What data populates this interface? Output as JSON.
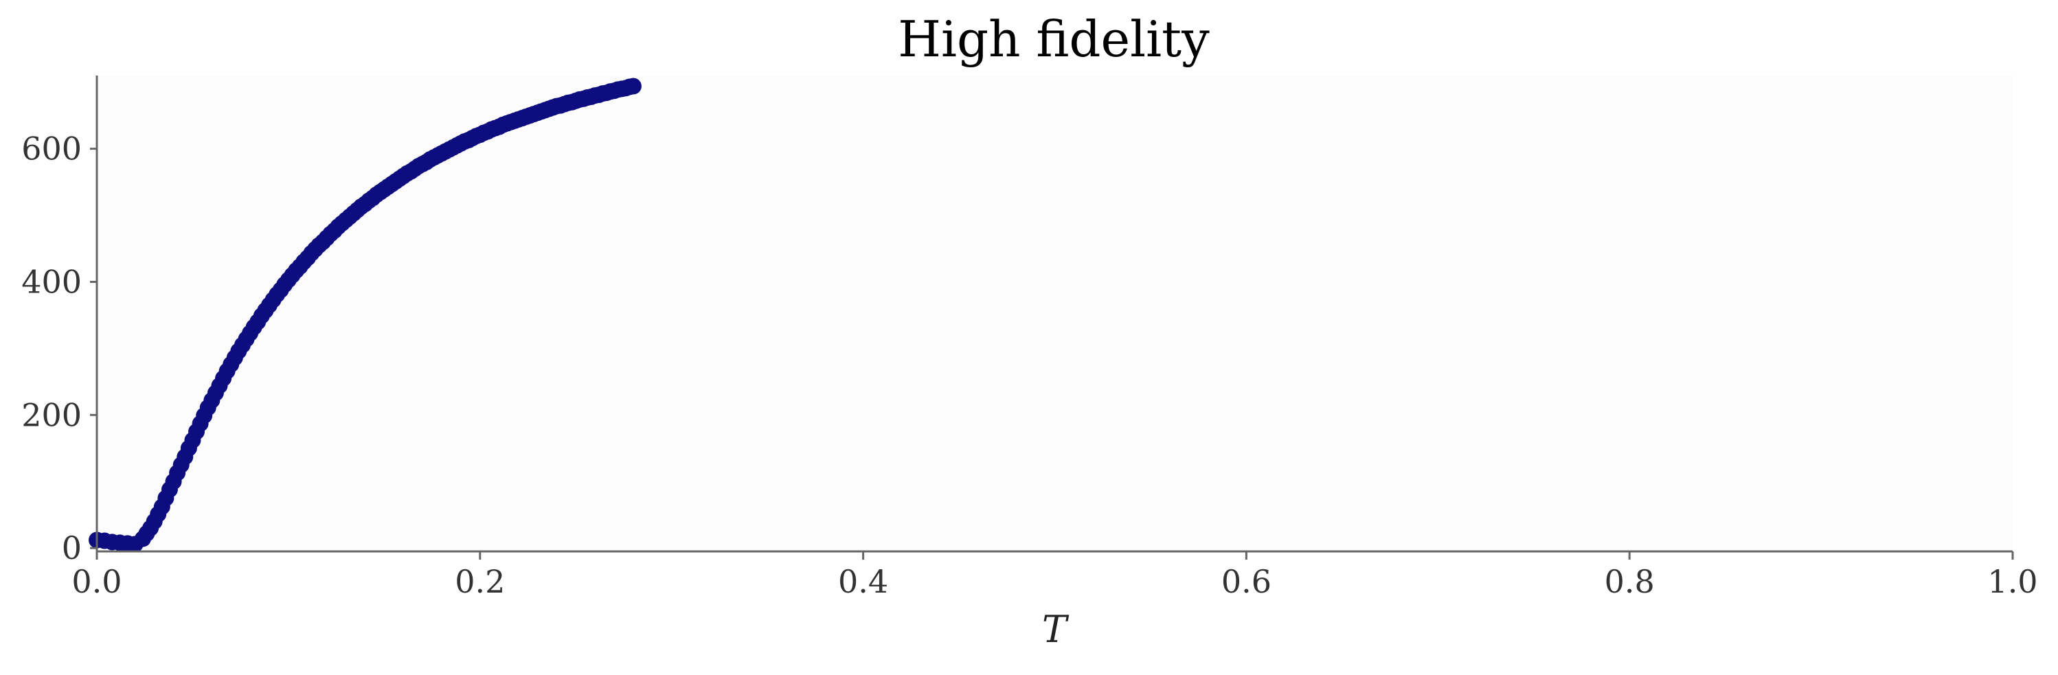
{
  "chart_data": {
    "type": "scatter",
    "title": "High fidelity",
    "xlabel": "T",
    "ylabel": "",
    "xlim": [
      0,
      1
    ],
    "ylim": [
      -5,
      710
    ],
    "x_ticks": [
      0.0,
      0.2,
      0.4,
      0.6,
      0.8,
      1.0
    ],
    "x_tick_labels": [
      "0.0",
      "0.2",
      "0.4",
      "0.6",
      "0.8",
      "1.0"
    ],
    "y_ticks": [
      0,
      200,
      400,
      600
    ],
    "y_tick_labels": [
      "0",
      "200",
      "400",
      "600"
    ],
    "grid": false,
    "legend": "none",
    "series": [
      {
        "color": "#0d0d80",
        "x": [
          0.0,
          0.004,
          0.008,
          0.012,
          0.016,
          0.02,
          0.024,
          0.026,
          0.028,
          0.03,
          0.032,
          0.034,
          0.036,
          0.038,
          0.04,
          0.042,
          0.044,
          0.046,
          0.048,
          0.05,
          0.052,
          0.054,
          0.056,
          0.058,
          0.06,
          0.062,
          0.064,
          0.066,
          0.068,
          0.07,
          0.072,
          0.074,
          0.076,
          0.078,
          0.08,
          0.082,
          0.084,
          0.086,
          0.088,
          0.09,
          0.092,
          0.094,
          0.096,
          0.098,
          0.1,
          0.102,
          0.104,
          0.106,
          0.108,
          0.11,
          0.112,
          0.114,
          0.116,
          0.118,
          0.12,
          0.122,
          0.124,
          0.126,
          0.128,
          0.13,
          0.132,
          0.134,
          0.136,
          0.138,
          0.14,
          0.142,
          0.144,
          0.146,
          0.148,
          0.15,
          0.152,
          0.154,
          0.156,
          0.158,
          0.16,
          0.162,
          0.164,
          0.166,
          0.168,
          0.17,
          0.172,
          0.174,
          0.176,
          0.178,
          0.18,
          0.182,
          0.184,
          0.186,
          0.188,
          0.19,
          0.192,
          0.194,
          0.196,
          0.198,
          0.2,
          0.202,
          0.204,
          0.206,
          0.208,
          0.21,
          0.212,
          0.214,
          0.216,
          0.218,
          0.22,
          0.222,
          0.224,
          0.226,
          0.228,
          0.23,
          0.232,
          0.234,
          0.236,
          0.238,
          0.24,
          0.242,
          0.244,
          0.246,
          0.248,
          0.25,
          0.252,
          0.254,
          0.256,
          0.258,
          0.26,
          0.262,
          0.264,
          0.266,
          0.268,
          0.27,
          0.272,
          0.274,
          0.276,
          0.278,
          0.28
        ],
        "y": [
          12,
          11,
          9,
          8,
          7,
          6,
          14,
          22,
          30,
          40,
          51,
          62,
          75,
          88,
          100,
          113,
          125,
          137,
          150,
          162,
          175,
          187,
          199,
          211,
          222,
          233,
          244,
          255,
          266,
          276,
          286,
          296,
          305,
          314,
          323,
          332,
          340,
          349,
          357,
          365,
          373,
          381,
          388,
          396,
          403,
          410,
          417,
          423,
          430,
          436,
          443,
          449,
          455,
          460,
          466,
          472,
          477,
          483,
          488,
          493,
          498,
          503,
          508,
          513,
          517,
          522,
          526,
          531,
          535,
          539,
          543,
          547,
          551,
          555,
          559,
          563,
          566,
          570,
          574,
          577,
          580,
          584,
          587,
          590,
          593,
          596,
          599,
          602,
          605,
          608,
          611,
          613,
          616,
          619,
          621,
          624,
          626,
          629,
          631,
          633,
          636,
          638,
          640,
          642,
          644,
          646,
          648,
          650,
          652,
          654,
          656,
          658,
          660,
          662,
          664,
          665,
          667,
          669,
          670,
          672,
          674,
          675,
          677,
          678,
          680,
          681,
          683,
          684,
          686,
          687,
          689,
          690,
          691,
          693,
          694
        ]
      }
    ]
  }
}
